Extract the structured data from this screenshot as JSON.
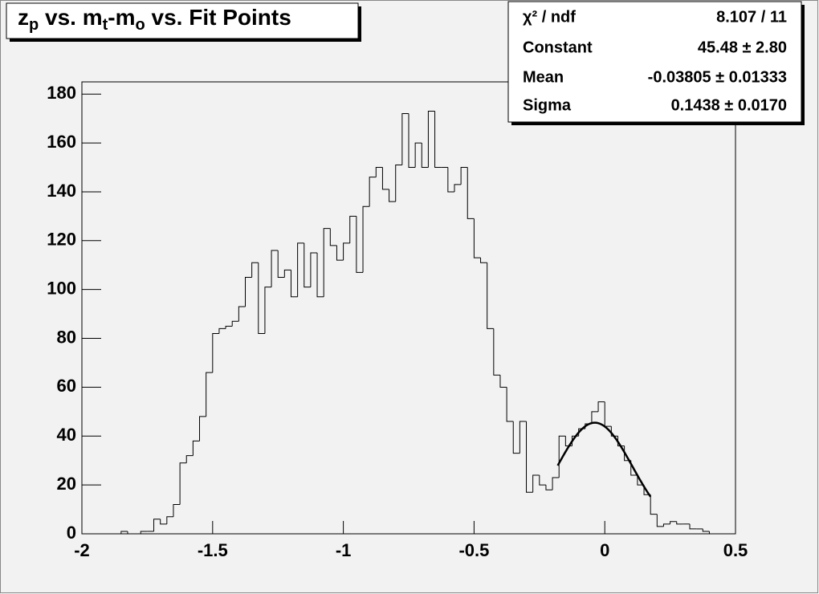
{
  "chart_data": {
    "type": "histogram",
    "title_parts": [
      {
        "text": "z",
        "sub": false
      },
      {
        "text": "p",
        "sub": true
      },
      {
        "text": " vs. m",
        "sub": false
      },
      {
        "text": "t",
        "sub": true
      },
      {
        "text": "-m",
        "sub": false
      },
      {
        "text": "o",
        "sub": true
      },
      {
        "text": " vs. Fit Points",
        "sub": false
      }
    ],
    "bins": [
      -2,
      -1.975,
      -1.95,
      -1.925,
      -1.9,
      -1.875,
      -1.85,
      -1.825,
      -1.8,
      -1.775,
      -1.75,
      -1.725,
      -1.7,
      -1.675,
      -1.65,
      -1.625,
      -1.6,
      -1.575,
      -1.55,
      -1.525,
      -1.5,
      -1.475,
      -1.45,
      -1.425,
      -1.4,
      -1.375,
      -1.35,
      -1.325,
      -1.3,
      -1.275,
      -1.25,
      -1.225,
      -1.2,
      -1.175,
      -1.15,
      -1.125,
      -1.1,
      -1.075,
      -1.05,
      -1.025,
      -1,
      -0.975,
      -0.95,
      -0.925,
      -0.9,
      -0.875,
      -0.85,
      -0.825,
      -0.8,
      -0.775,
      -0.75,
      -0.725,
      -0.7,
      -0.675,
      -0.65,
      -0.625,
      -0.6,
      -0.575,
      -0.55,
      -0.525,
      -0.5,
      -0.475,
      -0.45,
      -0.425,
      -0.4,
      -0.375,
      -0.35,
      -0.325,
      -0.3,
      -0.275,
      -0.25,
      -0.225,
      -0.2,
      -0.175,
      -0.15,
      -0.125,
      -0.1,
      -0.075,
      -0.05,
      -0.025,
      0,
      0.025,
      0.05,
      0.075,
      0.1,
      0.125,
      0.15,
      0.175,
      0.2,
      0.225,
      0.25,
      0.275,
      0.3,
      0.325,
      0.35,
      0.375,
      0.4,
      0.425,
      0.45,
      0.475,
      0.5
    ],
    "values": [
      0,
      0,
      0,
      0,
      0,
      0,
      1,
      0,
      0,
      1,
      1,
      6,
      4,
      7,
      12,
      29,
      32,
      38,
      48,
      66,
      82,
      84,
      85,
      87,
      93,
      105,
      111,
      82,
      101,
      116,
      105,
      108,
      97,
      119,
      101,
      115,
      97,
      125,
      118,
      112,
      119,
      130,
      107,
      134,
      146,
      150,
      141,
      136,
      151,
      172,
      150,
      160,
      150,
      173,
      150,
      150,
      140,
      143,
      150,
      129,
      113,
      111,
      84,
      65,
      60,
      46,
      33,
      46,
      17,
      24,
      20,
      18,
      23,
      40,
      36,
      40,
      43,
      45,
      50,
      54,
      44,
      40,
      36,
      30,
      24,
      20,
      16,
      8,
      3,
      4,
      5,
      4,
      4,
      2,
      2,
      1,
      0,
      0,
      0,
      0
    ],
    "color": "#000000",
    "xlim": [
      -2,
      0.5
    ],
    "xticks": [
      -2,
      -1.5,
      -1,
      -0.5,
      0,
      0.5
    ],
    "ylim": [
      0,
      185
    ],
    "yticks": [
      0,
      20,
      40,
      60,
      80,
      100,
      120,
      140,
      160,
      180
    ],
    "fit": {
      "constant": 45.48,
      "mean": -0.03805,
      "sigma": 0.1438,
      "xlim": [
        -0.18,
        0.175
      ]
    },
    "stats": [
      {
        "label": "χ² / ndf",
        "value": "8.107 / 11"
      },
      {
        "label": "Constant",
        "value": "45.48 ± 2.80"
      },
      {
        "label": "Mean",
        "value": "-0.03805 ± 0.01333"
      },
      {
        "label": "Sigma",
        "value": "0.1438 ± 0.0170"
      }
    ]
  }
}
